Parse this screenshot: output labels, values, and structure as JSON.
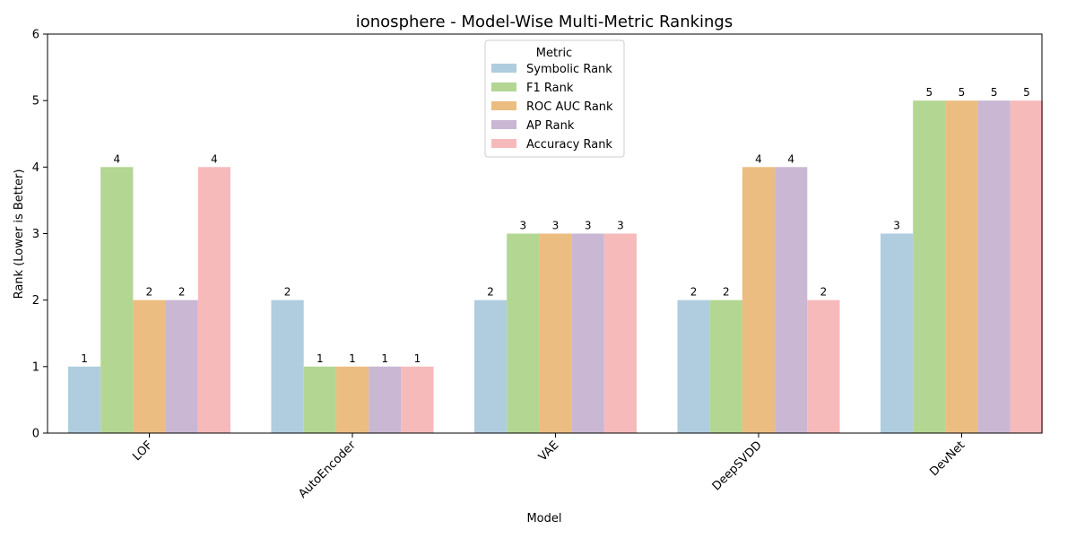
{
  "chart_data": {
    "type": "bar",
    "title": "ionosphere - Model-Wise Multi-Metric Rankings",
    "xlabel": "Model",
    "ylabel": "Rank (Lower is Better)",
    "ylim": [
      0,
      6
    ],
    "yticks": [
      0,
      1,
      2,
      3,
      4,
      5,
      6
    ],
    "categories": [
      "LOF",
      "AutoEncoder",
      "VAE",
      "DeepSVDD",
      "DevNet"
    ],
    "legend": {
      "title": "Metric",
      "placement": "top-center"
    },
    "grid": false,
    "series": [
      {
        "name": "Symbolic Rank",
        "color": "#afcddf",
        "values": [
          1,
          2,
          2,
          2,
          3
        ]
      },
      {
        "name": "F1 Rank",
        "color": "#b3d692",
        "values": [
          4,
          1,
          3,
          2,
          5
        ]
      },
      {
        "name": "ROC AUC Rank",
        "color": "#ecbd81",
        "values": [
          2,
          1,
          3,
          4,
          5
        ]
      },
      {
        "name": "AP Rank",
        "color": "#c9b7d4",
        "values": [
          2,
          1,
          3,
          4,
          5
        ]
      },
      {
        "name": "Accuracy Rank",
        "color": "#f6baba",
        "values": [
          4,
          1,
          3,
          2,
          5
        ]
      }
    ]
  }
}
